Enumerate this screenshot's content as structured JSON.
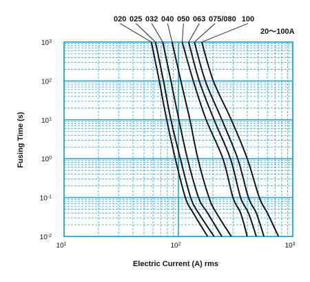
{
  "chart_data": {
    "type": "line",
    "title": "",
    "rating_label": "20～100A",
    "curve_labels": [
      "020",
      "025",
      "032",
      "040",
      "050",
      "063",
      "075/080",
      "100"
    ],
    "xlabel": "Electric Current (A) rms",
    "ylabel": "Fusing Time (s)",
    "x_scale": "log",
    "y_scale": "log",
    "xlim": [
      10,
      1000
    ],
    "ylim": [
      0.01,
      1000
    ],
    "x_ticks": [
      {
        "base": "10",
        "exp": "1"
      },
      {
        "base": "10",
        "exp": "2"
      },
      {
        "base": "10",
        "exp": "3"
      }
    ],
    "y_ticks": [
      {
        "base": "10",
        "exp": "-2"
      },
      {
        "base": "10",
        "exp": "-1"
      },
      {
        "base": "10",
        "exp": "0"
      },
      {
        "base": "10",
        "exp": "1"
      },
      {
        "base": "10",
        "exp": "2"
      },
      {
        "base": "10",
        "exp": "3"
      }
    ],
    "grid": true,
    "colors": {
      "grid": "#22a7d6",
      "curve": "#111111"
    },
    "series": [
      {
        "name": "020",
        "x": [
          58,
          68,
          79,
          94,
          115,
          135,
          180
        ],
        "y": [
          1000,
          100,
          10,
          1,
          0.1,
          0.04,
          0.01
        ]
      },
      {
        "name": "025",
        "x": [
          63,
          74,
          86,
          104,
          128,
          150,
          205
        ],
        "y": [
          1000,
          100,
          10,
          1,
          0.1,
          0.04,
          0.01
        ]
      },
      {
        "name": "032",
        "x": [
          73,
          86,
          101,
          120,
          150,
          180,
          240
        ],
        "y": [
          1000,
          100,
          10,
          1,
          0.1,
          0.04,
          0.01
        ]
      },
      {
        "name": "040",
        "x": [
          88,
          105,
          126,
          148,
          185,
          215,
          290
        ],
        "y": [
          1000,
          100,
          10,
          1,
          0.1,
          0.04,
          0.01
        ]
      },
      {
        "name": "050",
        "x": [
          108,
          135,
          175,
          245,
          300,
          350,
          400
        ],
        "y": [
          1000,
          100,
          10,
          1,
          0.1,
          0.04,
          0.01
        ]
      },
      {
        "name": "063",
        "x": [
          123,
          152,
          205,
          285,
          350,
          410,
          480
        ],
        "y": [
          1000,
          100,
          10,
          1,
          0.1,
          0.04,
          0.01
        ]
      },
      {
        "name": "075/080",
        "x": [
          138,
          172,
          240,
          330,
          410,
          480,
          560
        ],
        "y": [
          1000,
          100,
          10,
          1,
          0.1,
          0.04,
          0.01
        ]
      },
      {
        "name": "100",
        "x": [
          160,
          202,
          290,
          400,
          510,
          600,
          750
        ],
        "y": [
          1000,
          100,
          10,
          1,
          0.1,
          0.04,
          0.01
        ]
      }
    ]
  }
}
